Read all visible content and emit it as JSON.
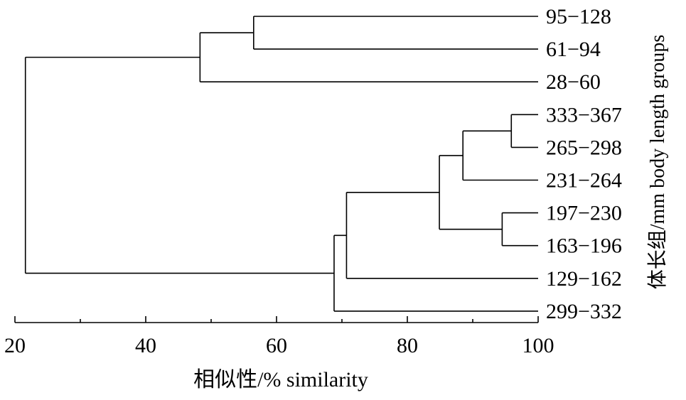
{
  "chart_data": {
    "type": "dendrogram",
    "xlabel": "相似性/% similarity",
    "ylabel": "体长组/mm body length groups",
    "xlim": [
      20,
      100
    ],
    "xticks": [
      20,
      40,
      60,
      80,
      100
    ],
    "leaves": [
      "95−128",
      "61−94",
      "28−60",
      "333−367",
      "265−298",
      "231−264",
      "197−230",
      "163−196",
      "129−162",
      "299−332"
    ],
    "merges": [
      {
        "id": "A",
        "similarity": 56.5,
        "children": [
          "95−128",
          "61−94"
        ]
      },
      {
        "id": "B",
        "similarity": 48.3,
        "children": [
          "A",
          "28−60"
        ]
      },
      {
        "id": "C",
        "similarity": 95.9,
        "children": [
          "333−367",
          "265−298"
        ]
      },
      {
        "id": "D",
        "similarity": 88.5,
        "children": [
          "C",
          "231−264"
        ]
      },
      {
        "id": "E",
        "similarity": 94.5,
        "children": [
          "197−230",
          "163−196"
        ]
      },
      {
        "id": "F",
        "similarity": 84.9,
        "children": [
          "D",
          "E"
        ]
      },
      {
        "id": "G",
        "similarity": 70.7,
        "children": [
          "F",
          "129−162"
        ]
      },
      {
        "id": "H",
        "similarity": 68.8,
        "children": [
          "G",
          "299−332"
        ]
      },
      {
        "id": "root",
        "similarity": 21.6,
        "children": [
          "B",
          "H"
        ]
      }
    ],
    "grid": false,
    "legend": "none"
  }
}
